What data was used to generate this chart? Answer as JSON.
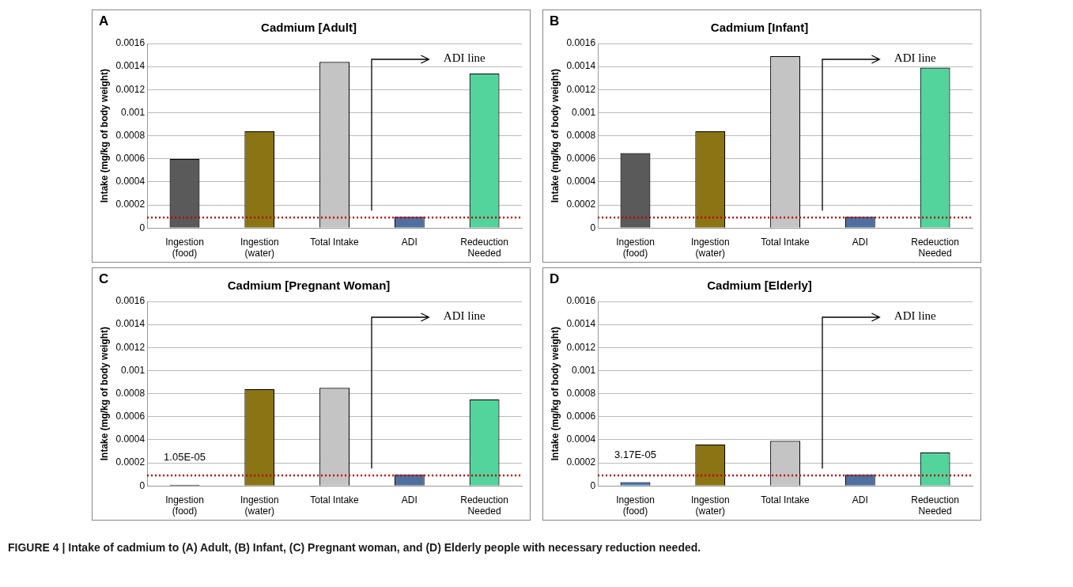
{
  "chart_data": [
    {
      "type": "bar",
      "title": "Cadmium [Adult]",
      "ylabel": "Intake (mg/kg of body weight)",
      "annotations": [
        "A",
        "ADI line"
      ],
      "categories": [
        "Ingestion (food)",
        "Ingestion (water)",
        "Total Intake",
        "ADI",
        "Redeuction Needed"
      ],
      "values": [
        0.0006,
        0.00084,
        0.00144,
        0.0001,
        0.00134
      ],
      "colors": [
        "#5a5a5a",
        "#8a7414",
        "#c4c4c4",
        "#4f6f9f",
        "#52d49c"
      ],
      "ylim": [
        0,
        0.0016
      ],
      "yticks": [
        0,
        0.0002,
        0.0004,
        0.0006,
        0.0008,
        0.001,
        0.0012,
        0.0014,
        0.0016
      ],
      "grid": "y",
      "legend": false,
      "ref_lines": [
        {
          "axis": "y",
          "value": 9e-05,
          "color": "#c00000",
          "line_style": "dotted"
        }
      ]
    },
    {
      "type": "bar",
      "title": "Cadmium [Infant]",
      "ylabel": "Intake (mg/kg of body weight)",
      "annotations": [
        "B",
        "ADI line"
      ],
      "categories": [
        "Ingestion (food)",
        "Ingestion (water)",
        "Total Intake",
        "ADI",
        "Redeuction Needed"
      ],
      "values": [
        0.00065,
        0.00084,
        0.00149,
        0.0001,
        0.00139
      ],
      "colors": [
        "#5a5a5a",
        "#8a7414",
        "#c4c4c4",
        "#4f6f9f",
        "#52d49c"
      ],
      "ylim": [
        0,
        0.0016
      ],
      "yticks": [
        0,
        0.0002,
        0.0004,
        0.0006,
        0.0008,
        0.001,
        0.0012,
        0.0014,
        0.0016
      ],
      "grid": "y",
      "legend": false,
      "ref_lines": [
        {
          "axis": "y",
          "value": 9e-05,
          "color": "#c00000",
          "line_style": "dotted"
        }
      ]
    },
    {
      "type": "bar",
      "title": "Cadmium [Pregnant Woman]",
      "ylabel": "Intake (mg/kg of body weight)",
      "annotations": [
        "C",
        "ADI line"
      ],
      "categories": [
        "Ingestion (food)",
        "Ingestion (water)",
        "Total Intake",
        "ADI",
        "Redeuction Needed"
      ],
      "values": [
        1.05e-05,
        0.00084,
        0.00085,
        0.0001,
        0.00075
      ],
      "value_labels": [
        "1.05E-05",
        null,
        null,
        null,
        null
      ],
      "colors": [
        "#222222",
        "#8a7414",
        "#c4c4c4",
        "#4f6f9f",
        "#52d49c"
      ],
      "ylim": [
        0,
        0.0016
      ],
      "yticks": [
        0,
        0.0002,
        0.0004,
        0.0006,
        0.0008,
        0.001,
        0.0012,
        0.0014,
        0.0016
      ],
      "grid": "y",
      "legend": false,
      "ref_lines": [
        {
          "axis": "y",
          "value": 9e-05,
          "color": "#c00000",
          "line_style": "dotted"
        }
      ]
    },
    {
      "type": "bar",
      "title": "Cadmium [Elderly]",
      "ylabel": "Intake (mg/kg of body weight)",
      "annotations": [
        "D",
        "ADI line",
        "FIGURE 4 | Intake of cadmium to (A) Adult, (B) Infant, (C) Pregnant woman, and (D) Elderly people with necessary reduction needed."
      ],
      "categories": [
        "Ingestion (food)",
        "Ingestion (water)",
        "Total Intake",
        "ADI",
        "Redeuction Needed"
      ],
      "values": [
        3.17e-05,
        0.00036,
        0.00039,
        0.0001,
        0.00029
      ],
      "value_labels": [
        "3.17E-05",
        null,
        null,
        null,
        null
      ],
      "colors": [
        "#4f81bd",
        "#8a7414",
        "#c4c4c4",
        "#4f6f9f",
        "#52d49c"
      ],
      "ylim": [
        0,
        0.0016
      ],
      "yticks": [
        0,
        0.0002,
        0.0004,
        0.0006,
        0.0008,
        0.001,
        0.0012,
        0.0014,
        0.0016
      ],
      "grid": "y",
      "legend": false,
      "ref_lines": [
        {
          "axis": "y",
          "value": 9e-05,
          "color": "#c00000",
          "line_style": "dotted"
        }
      ]
    }
  ]
}
